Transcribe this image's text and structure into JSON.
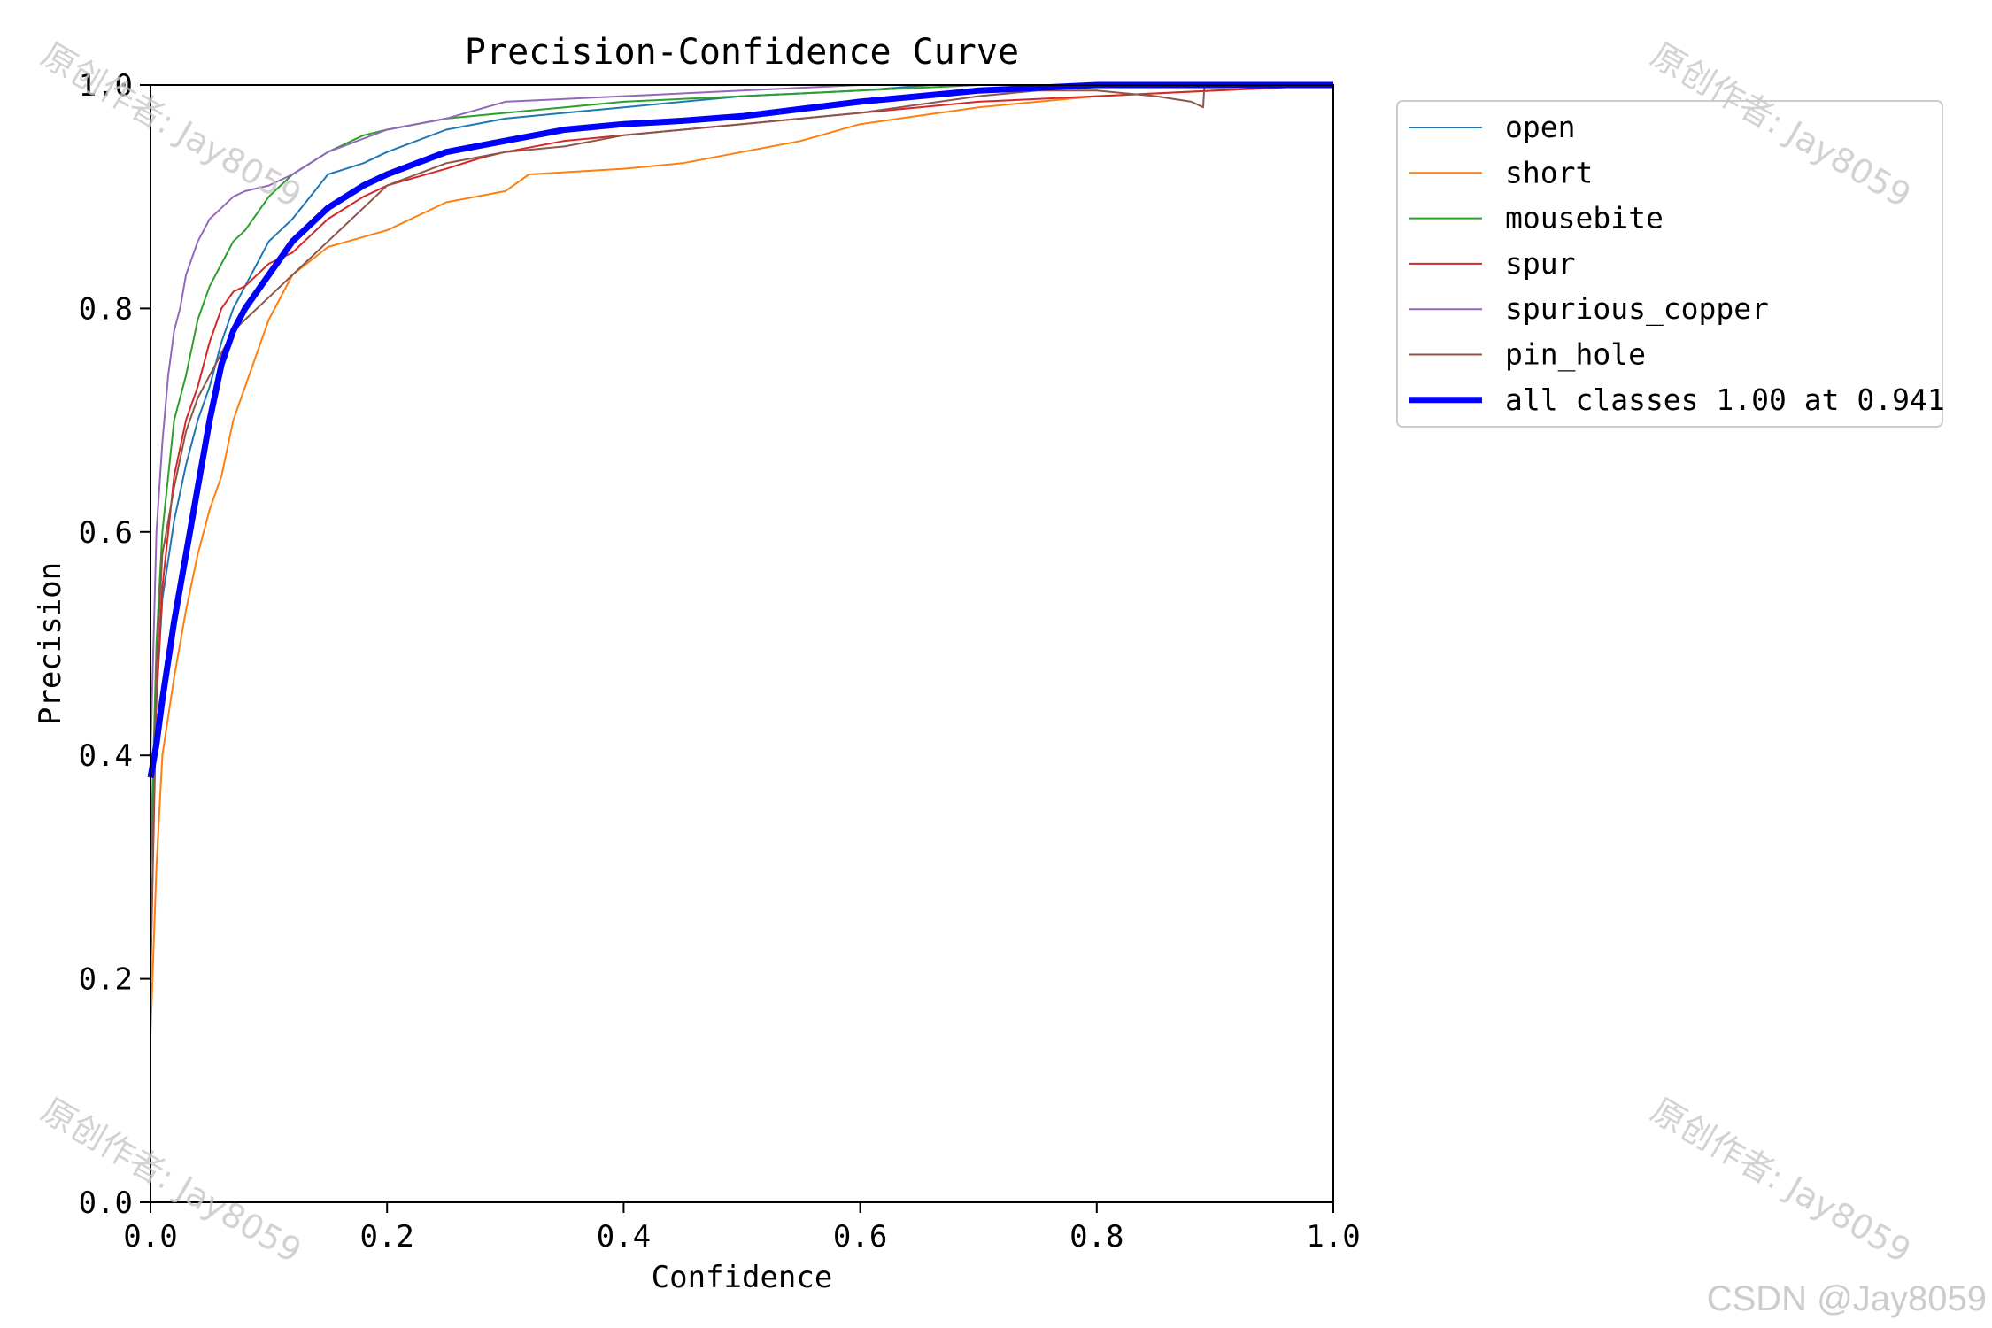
{
  "chart_data": {
    "type": "line",
    "title": "Precision-Confidence Curve",
    "xlabel": "Confidence",
    "ylabel": "Precision",
    "xlim": [
      0,
      1
    ],
    "ylim": [
      0,
      1
    ],
    "xticks": [
      "0.0",
      "0.2",
      "0.4",
      "0.6",
      "0.8",
      "1.0"
    ],
    "yticks": [
      "0.0",
      "0.2",
      "0.4",
      "0.6",
      "0.8",
      "1.0"
    ],
    "grid": false,
    "legend_placement": "outside-right-top",
    "series": [
      {
        "name": "open",
        "color": "#1f77b4",
        "width": 2,
        "x": [
          0,
          0.005,
          0.01,
          0.02,
          0.03,
          0.04,
          0.05,
          0.06,
          0.07,
          0.08,
          0.1,
          0.12,
          0.15,
          0.18,
          0.2,
          0.25,
          0.3,
          0.35,
          0.4,
          0.5,
          0.6,
          0.66,
          0.7,
          0.8,
          1.0
        ],
        "y": [
          0.3,
          0.45,
          0.54,
          0.61,
          0.66,
          0.7,
          0.73,
          0.77,
          0.8,
          0.82,
          0.86,
          0.88,
          0.92,
          0.93,
          0.94,
          0.96,
          0.97,
          0.975,
          0.98,
          0.99,
          0.995,
          1.0,
          1.0,
          1.0,
          1.0
        ]
      },
      {
        "name": "short",
        "color": "#ff7f0e",
        "width": 2,
        "x": [
          0,
          0.005,
          0.01,
          0.02,
          0.03,
          0.04,
          0.05,
          0.06,
          0.07,
          0.08,
          0.09,
          0.1,
          0.12,
          0.15,
          0.2,
          0.25,
          0.3,
          0.32,
          0.4,
          0.45,
          0.5,
          0.55,
          0.6,
          0.7,
          0.8,
          0.9,
          1.0
        ],
        "y": [
          0.15,
          0.3,
          0.4,
          0.47,
          0.53,
          0.58,
          0.62,
          0.65,
          0.7,
          0.73,
          0.76,
          0.79,
          0.83,
          0.855,
          0.87,
          0.895,
          0.905,
          0.92,
          0.925,
          0.93,
          0.94,
          0.95,
          0.965,
          0.98,
          0.99,
          0.995,
          1.0
        ]
      },
      {
        "name": "mousebite",
        "color": "#2ca02c",
        "width": 2,
        "x": [
          0,
          0.005,
          0.01,
          0.015,
          0.02,
          0.03,
          0.04,
          0.05,
          0.06,
          0.07,
          0.08,
          0.1,
          0.12,
          0.15,
          0.18,
          0.2,
          0.25,
          0.3,
          0.35,
          0.4,
          0.5,
          0.6,
          0.7,
          0.8,
          1.0
        ],
        "y": [
          0.3,
          0.5,
          0.6,
          0.65,
          0.7,
          0.74,
          0.79,
          0.82,
          0.84,
          0.86,
          0.87,
          0.9,
          0.92,
          0.94,
          0.955,
          0.96,
          0.97,
          0.975,
          0.98,
          0.985,
          0.99,
          0.995,
          1.0,
          1.0,
          1.0
        ]
      },
      {
        "name": "spur",
        "color": "#d62728",
        "width": 2,
        "x": [
          0,
          0.005,
          0.01,
          0.02,
          0.03,
          0.04,
          0.05,
          0.06,
          0.07,
          0.08,
          0.1,
          0.12,
          0.15,
          0.18,
          0.2,
          0.25,
          0.28,
          0.3,
          0.35,
          0.4,
          0.45,
          0.5,
          0.55,
          0.6,
          0.65,
          0.7,
          0.8,
          0.9,
          1.0
        ],
        "y": [
          0.2,
          0.45,
          0.55,
          0.65,
          0.7,
          0.73,
          0.77,
          0.8,
          0.815,
          0.82,
          0.84,
          0.85,
          0.88,
          0.9,
          0.91,
          0.925,
          0.935,
          0.94,
          0.95,
          0.955,
          0.96,
          0.965,
          0.97,
          0.975,
          0.98,
          0.985,
          0.99,
          0.995,
          1.0
        ]
      },
      {
        "name": "spurious_copper",
        "color": "#9467bd",
        "width": 2,
        "x": [
          0,
          0.005,
          0.01,
          0.015,
          0.02,
          0.025,
          0.03,
          0.04,
          0.05,
          0.06,
          0.07,
          0.08,
          0.1,
          0.12,
          0.15,
          0.2,
          0.25,
          0.3,
          0.4,
          0.5,
          0.6,
          0.8,
          1.0
        ],
        "y": [
          0.4,
          0.6,
          0.68,
          0.74,
          0.78,
          0.8,
          0.83,
          0.86,
          0.88,
          0.89,
          0.9,
          0.905,
          0.91,
          0.92,
          0.94,
          0.96,
          0.97,
          0.985,
          0.99,
          0.995,
          1.0,
          1.0,
          1.0
        ]
      },
      {
        "name": "pin_hole",
        "color": "#8c564b",
        "width": 2,
        "x": [
          0,
          0.005,
          0.01,
          0.02,
          0.03,
          0.04,
          0.05,
          0.06,
          0.07,
          0.08,
          0.1,
          0.12,
          0.15,
          0.18,
          0.2,
          0.25,
          0.3,
          0.35,
          0.4,
          0.5,
          0.6,
          0.7,
          0.75,
          0.8,
          0.85,
          0.88,
          0.89,
          0.891,
          0.95,
          1.0
        ],
        "y": [
          0.2,
          0.48,
          0.58,
          0.64,
          0.69,
          0.72,
          0.74,
          0.76,
          0.78,
          0.79,
          0.81,
          0.83,
          0.86,
          0.89,
          0.91,
          0.93,
          0.94,
          0.945,
          0.955,
          0.965,
          0.975,
          0.99,
          0.995,
          0.995,
          0.99,
          0.985,
          0.98,
          1.0,
          1.0,
          1.0
        ]
      },
      {
        "name": "all classes 1.00 at 0.941",
        "color": "#0000ff",
        "width": 7,
        "x": [
          0,
          0.005,
          0.01,
          0.02,
          0.03,
          0.04,
          0.05,
          0.06,
          0.07,
          0.08,
          0.1,
          0.12,
          0.15,
          0.18,
          0.2,
          0.25,
          0.3,
          0.35,
          0.4,
          0.45,
          0.5,
          0.6,
          0.7,
          0.8,
          0.9,
          0.941,
          1.0
        ],
        "y": [
          0.38,
          0.41,
          0.45,
          0.52,
          0.58,
          0.64,
          0.7,
          0.75,
          0.78,
          0.8,
          0.83,
          0.86,
          0.89,
          0.91,
          0.92,
          0.94,
          0.95,
          0.96,
          0.965,
          0.968,
          0.972,
          0.985,
          0.995,
          1.0,
          1.0,
          1.0,
          1.0
        ]
      }
    ]
  },
  "watermarks": [
    "原创作者: Jay8059",
    "原创作者: Jay8059",
    "原创作者: Jay8059",
    "原创作者: Jay8059"
  ],
  "credit": "CSDN @Jay8059"
}
